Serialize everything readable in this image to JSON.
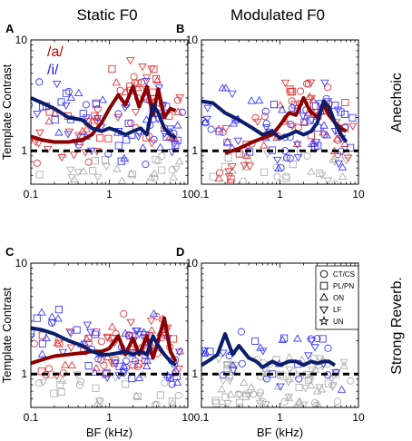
{
  "figure": {
    "col_titles": [
      "Static F0",
      "Modulated F0"
    ],
    "row_titles": [
      "Anechoic",
      "Strong Reverb."
    ],
    "vowel_labels": [
      {
        "text": "/a/",
        "color": "#c00000"
      },
      {
        "text": "/i/",
        "color": "#1a1aff"
      }
    ],
    "legend": [
      {
        "marker": "circle",
        "label": "CT/CS"
      },
      {
        "marker": "square",
        "label": "PL/PN"
      },
      {
        "marker": "triangle-up",
        "label": "ON"
      },
      {
        "marker": "triangle-down",
        "label": "LF"
      },
      {
        "marker": "star",
        "label": "UN"
      }
    ],
    "colors": {
      "a_points": "#e0393b",
      "i_points": "#3b3bff",
      "a_line": "#8b0000",
      "i_line": "#0b1d6b",
      "gray_points": "#b0b0b0",
      "reference_line": "#000000"
    }
  },
  "chart_data": [
    {
      "panel": "A",
      "type": "line",
      "xlabel": "",
      "ylabel": "Template Contrast",
      "xscale": "log",
      "yscale": "log",
      "xlim": [
        0.1,
        10
      ],
      "ylim": [
        0.5,
        10
      ],
      "x_ticks": [
        "0.1",
        "1",
        "10"
      ],
      "y_ticks": [
        "1",
        "10"
      ],
      "reference_y": 1,
      "series": [
        {
          "name": "/a/",
          "x": [
            0.1,
            0.14,
            0.2,
            0.3,
            0.45,
            0.6,
            0.8,
            1.0,
            1.3,
            1.6,
            2.0,
            2.4,
            3.0,
            3.6,
            4.2,
            5.0,
            6.0,
            7.0
          ],
          "y": [
            1.35,
            1.25,
            1.2,
            1.2,
            1.25,
            1.4,
            1.8,
            2.4,
            3.2,
            2.6,
            3.8,
            2.5,
            3.8,
            2.1,
            3.6,
            2.0,
            2.4,
            2.3
          ]
        },
        {
          "name": "/i/",
          "x": [
            0.1,
            0.14,
            0.2,
            0.3,
            0.45,
            0.6,
            0.8,
            1.0,
            1.3,
            1.6,
            2.0,
            2.5,
            3.0,
            3.6,
            4.2,
            5.0,
            6.0,
            7.0
          ],
          "y": [
            3.0,
            2.7,
            2.4,
            2.0,
            1.9,
            1.6,
            1.5,
            1.6,
            1.5,
            1.4,
            1.5,
            1.6,
            1.4,
            2.6,
            2.2,
            1.6,
            1.4,
            1.3
          ]
        }
      ]
    },
    {
      "panel": "B",
      "type": "line",
      "xlabel": "",
      "ylabel": "",
      "xscale": "log",
      "yscale": "log",
      "xlim": [
        0.1,
        10
      ],
      "ylim": [
        0.5,
        10
      ],
      "x_ticks": [
        "0.1",
        "1",
        "10"
      ],
      "y_ticks": [
        "1",
        "10"
      ],
      "reference_y": 1,
      "series": [
        {
          "name": "/a/",
          "x": [
            0.2,
            0.3,
            0.45,
            0.6,
            0.8,
            1.0,
            1.3,
            1.6,
            2.0,
            2.4,
            3.0,
            3.6,
            4.2,
            5.0,
            6.0,
            7.0
          ],
          "y": [
            0.95,
            1.05,
            1.2,
            1.3,
            1.4,
            1.7,
            2.2,
            2.1,
            3.0,
            2.3,
            2.0,
            2.6,
            2.1,
            1.8,
            1.6,
            1.5
          ]
        },
        {
          "name": "/i/",
          "x": [
            0.1,
            0.14,
            0.2,
            0.3,
            0.45,
            0.6,
            0.8,
            1.0,
            1.3,
            1.6,
            2.0,
            2.5,
            3.0,
            3.6,
            4.2,
            5.0,
            6.0,
            7.0
          ],
          "y": [
            2.8,
            2.7,
            2.2,
            1.9,
            1.6,
            1.4,
            1.5,
            1.3,
            1.4,
            1.5,
            1.4,
            1.5,
            1.8,
            2.8,
            2.5,
            1.8,
            1.4,
            1.2
          ]
        }
      ]
    },
    {
      "panel": "C",
      "type": "line",
      "xlabel": "BF (kHz)",
      "ylabel": "Template Contrast",
      "xscale": "log",
      "yscale": "log",
      "xlim": [
        0.1,
        10
      ],
      "ylim": [
        0.5,
        10
      ],
      "x_ticks": [
        "0.1",
        "1",
        "10"
      ],
      "y_ticks": [
        "1",
        "10"
      ],
      "reference_y": 1,
      "series": [
        {
          "name": "/a/",
          "x": [
            0.1,
            0.14,
            0.2,
            0.3,
            0.45,
            0.6,
            0.8,
            1.0,
            1.3,
            1.6,
            2.0,
            2.4,
            3.0,
            3.6,
            4.2,
            5.0,
            6.0,
            7.0
          ],
          "y": [
            1.25,
            1.35,
            1.45,
            1.5,
            1.55,
            1.6,
            1.6,
            1.7,
            2.2,
            1.5,
            2.1,
            1.5,
            2.2,
            1.4,
            2.0,
            3.2,
            1.6,
            1.3
          ]
        },
        {
          "name": "/i/",
          "x": [
            0.1,
            0.14,
            0.2,
            0.3,
            0.45,
            0.6,
            0.8,
            1.0,
            1.3,
            1.6,
            2.0,
            2.5,
            3.0,
            3.6,
            4.2,
            5.0,
            6.0,
            7.0
          ],
          "y": [
            2.6,
            2.5,
            2.3,
            2.0,
            1.8,
            1.6,
            1.5,
            1.5,
            1.55,
            1.6,
            1.5,
            1.6,
            1.5,
            2.2,
            1.8,
            1.5,
            1.3,
            1.2
          ]
        }
      ]
    },
    {
      "panel": "D",
      "type": "line",
      "xlabel": "BF (kHz)",
      "ylabel": "",
      "xscale": "log",
      "yscale": "log",
      "xlim": [
        0.1,
        10
      ],
      "ylim": [
        0.5,
        10
      ],
      "x_ticks": [
        "0.1",
        "1",
        "10"
      ],
      "y_ticks": [
        "1",
        "10"
      ],
      "reference_y": 1,
      "series": [
        {
          "name": "/i/",
          "x": [
            0.1,
            0.13,
            0.16,
            0.2,
            0.25,
            0.3,
            0.4,
            0.5,
            0.6,
            0.8,
            1.0,
            1.3,
            1.6,
            2.0,
            2.5,
            3.0,
            3.6,
            4.2,
            5.0
          ],
          "y": [
            1.2,
            1.35,
            1.5,
            2.3,
            1.5,
            1.8,
            1.4,
            1.3,
            1.15,
            1.3,
            1.2,
            1.3,
            1.3,
            1.2,
            1.3,
            1.25,
            1.3,
            1.3,
            1.2
          ]
        }
      ]
    }
  ]
}
